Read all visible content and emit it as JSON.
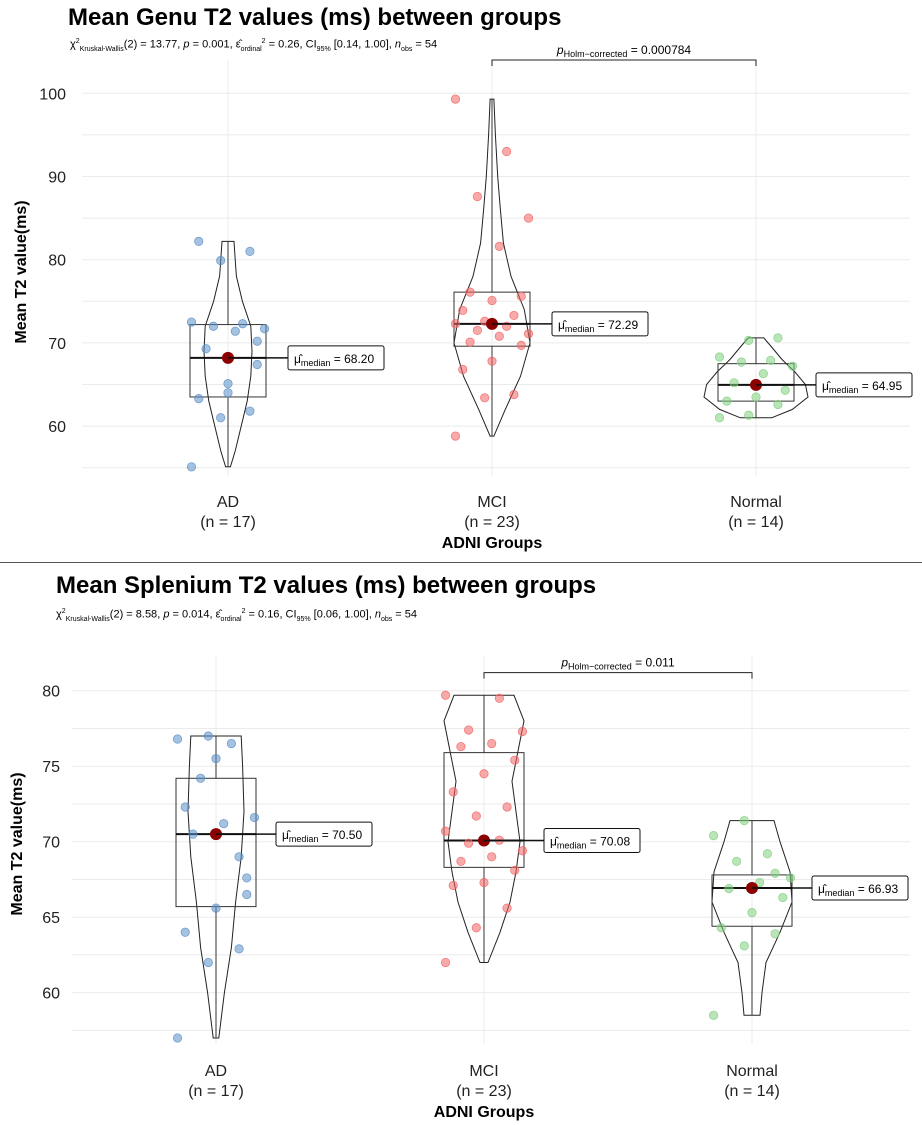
{
  "chart_data": [
    {
      "type": "violin-box",
      "title": "Mean Genu T2 values (ms) between groups",
      "subtitle": {
        "test": "Kruskal-Wallis",
        "df": "2",
        "statistic": "13.77",
        "p": "0.001",
        "effsize": "0.26",
        "ci_label": "95%",
        "ci": "[0.14, 1.00]",
        "n_obs": "54"
      },
      "xlabel": "ADNI Groups",
      "ylabel": "Mean T2 value(ms)",
      "ylim": [
        54,
        104
      ],
      "yticks": [
        60,
        70,
        80,
        90,
        100
      ],
      "categories": [
        "AD",
        "MCI",
        "Normal"
      ],
      "n_labels": [
        "(n = 17)",
        "(n = 23)",
        "(n = 14)"
      ],
      "colors": [
        "#5b8fc7",
        "#f26464",
        "#7fcf7f"
      ],
      "groups": [
        {
          "name": "AD",
          "min": 55.1,
          "q1": 63.5,
          "median": 68.2,
          "q3": 72.2,
          "max": 82.2,
          "label": "68.20",
          "points": [
            55.1,
            61.0,
            61.8,
            63.3,
            65.1,
            67.4,
            69.3,
            71.4,
            71.7,
            72.0,
            72.3,
            72.5,
            79.9,
            81.0,
            82.2,
            64.0,
            70.2
          ],
          "violin": [
            [
              55.1,
              0.1
            ],
            [
              57,
              0.3
            ],
            [
              60,
              0.55
            ],
            [
              63,
              0.8
            ],
            [
              66,
              0.95
            ],
            [
              69,
              1.0
            ],
            [
              72,
              0.95
            ],
            [
              75,
              0.6
            ],
            [
              78,
              0.35
            ],
            [
              80,
              0.3
            ],
            [
              82.2,
              0.25
            ]
          ]
        },
        {
          "name": "MCI",
          "min": 58.8,
          "q1": 69.6,
          "median": 72.29,
          "q3": 76.1,
          "max": 99.3,
          "label": "72.29",
          "points": [
            58.8,
            63.4,
            63.8,
            66.8,
            67.8,
            69.7,
            70.1,
            70.8,
            71.1,
            71.5,
            72.0,
            72.3,
            72.6,
            73.3,
            73.9,
            75.1,
            75.6,
            76.1,
            81.6,
            85.0,
            87.6,
            93.0,
            99.3
          ],
          "violin": [
            [
              58.8,
              0.05
            ],
            [
              62,
              0.35
            ],
            [
              66,
              0.75
            ],
            [
              70,
              1.0
            ],
            [
              74,
              0.85
            ],
            [
              78,
              0.5
            ],
            [
              82,
              0.3
            ],
            [
              86,
              0.22
            ],
            [
              90,
              0.15
            ],
            [
              95,
              0.09
            ],
            [
              99.3,
              0.05
            ]
          ]
        },
        {
          "name": "Normal",
          "min": 61.0,
          "q1": 63.0,
          "median": 64.95,
          "q3": 67.5,
          "max": 70.6,
          "label": "64.95",
          "points": [
            61.0,
            61.3,
            62.6,
            63.0,
            63.5,
            64.3,
            65.2,
            66.3,
            67.2,
            67.7,
            67.9,
            68.3,
            70.3,
            70.6
          ],
          "violin": [
            [
              61.0,
              0.3
            ],
            [
              62,
              0.7
            ],
            [
              63.5,
              1.0
            ],
            [
              65,
              0.95
            ],
            [
              66.5,
              0.75
            ],
            [
              68,
              0.5
            ],
            [
              69.5,
              0.3
            ],
            [
              70.6,
              0.15
            ]
          ]
        }
      ],
      "comparison": {
        "from": "MCI",
        "to": "Normal",
        "y": 104,
        "label_sub": "Holm−corrected",
        "value": "0.000784"
      }
    },
    {
      "type": "violin-box",
      "title": "Mean Splenium T2 values (ms) between groups",
      "subtitle": {
        "test": "Kruskal-Wallis",
        "df": "2",
        "statistic": "8.58",
        "p": "0.014",
        "effsize": "0.16",
        "ci_label": "95%",
        "ci": "[0.06, 1.00]",
        "n_obs": "54"
      },
      "xlabel": "ADNI Groups",
      "ylabel": "Mean T2 value(ms)",
      "ylim": [
        56.6,
        82.3
      ],
      "yticks": [
        60,
        65,
        70,
        75,
        80
      ],
      "categories": [
        "AD",
        "MCI",
        "Normal"
      ],
      "n_labels": [
        "(n = 17)",
        "(n = 23)",
        "(n = 14)"
      ],
      "colors": [
        "#5b8fc7",
        "#f26464",
        "#7fcf7f"
      ],
      "groups": [
        {
          "name": "AD",
          "min": 57.0,
          "q1": 65.7,
          "median": 70.5,
          "q3": 74.2,
          "max": 77.0,
          "label": "70.50",
          "points": [
            57.0,
            62.0,
            62.9,
            64.0,
            65.6,
            67.6,
            70.5,
            71.2,
            71.6,
            74.2,
            76.5,
            76.8,
            77.0,
            69.0,
            72.3,
            75.5,
            66.5
          ],
          "violin": [
            [
              57.0,
              0.1
            ],
            [
              60,
              0.3
            ],
            [
              63,
              0.55
            ],
            [
              66,
              0.7
            ],
            [
              69,
              0.9
            ],
            [
              72,
              1.0
            ],
            [
              75,
              0.95
            ],
            [
              77.0,
              0.9
            ]
          ]
        },
        {
          "name": "MCI",
          "min": 62.0,
          "q1": 68.3,
          "median": 70.08,
          "q3": 75.9,
          "max": 79.7,
          "label": "70.08",
          "points": [
            62.0,
            64.3,
            65.6,
            67.1,
            67.3,
            68.1,
            68.7,
            69.0,
            69.4,
            69.9,
            70.1,
            70.7,
            71.7,
            72.3,
            73.3,
            74.5,
            75.4,
            76.3,
            76.5,
            77.3,
            77.4,
            79.5,
            79.7
          ],
          "violin": [
            [
              62.0,
              0.1
            ],
            [
              64,
              0.4
            ],
            [
              66,
              0.65
            ],
            [
              68,
              0.8
            ],
            [
              70,
              0.9
            ],
            [
              72,
              0.8
            ],
            [
              74,
              0.7
            ],
            [
              76,
              0.85
            ],
            [
              78,
              1.0
            ],
            [
              79.7,
              0.75
            ]
          ]
        },
        {
          "name": "Normal",
          "min": 58.5,
          "q1": 64.4,
          "median": 66.93,
          "q3": 67.8,
          "max": 71.4,
          "label": "66.93",
          "points": [
            58.5,
            63.1,
            63.9,
            64.3,
            65.3,
            66.3,
            66.9,
            67.3,
            67.6,
            68.7,
            69.2,
            70.4,
            71.4,
            67.9
          ],
          "violin": [
            [
              58.5,
              0.2
            ],
            [
              60,
              0.25
            ],
            [
              62,
              0.35
            ],
            [
              64,
              0.7
            ],
            [
              66,
              1.0
            ],
            [
              68,
              0.95
            ],
            [
              70,
              0.7
            ],
            [
              71.4,
              0.55
            ]
          ]
        }
      ],
      "comparison": {
        "from": "MCI",
        "to": "Normal",
        "y": 81.2,
        "label_sub": "Holm−corrected",
        "value": "0.011"
      }
    }
  ]
}
